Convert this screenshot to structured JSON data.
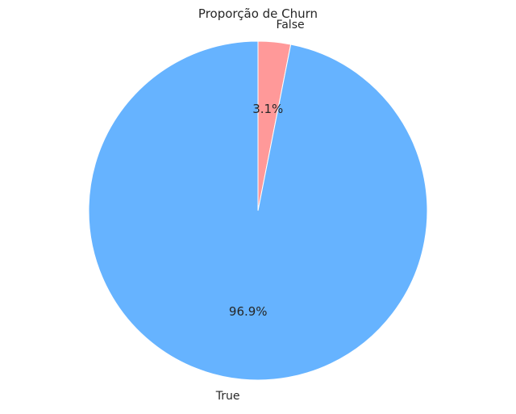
{
  "chart_data": {
    "type": "pie",
    "title": "Proporção de Churn",
    "start_angle_deg": 90,
    "direction": "clockwise",
    "slices": [
      {
        "label": "False",
        "value": 3.1,
        "pct_label": "3.1%",
        "color": "#ff9999"
      },
      {
        "label": "True",
        "value": 96.9,
        "pct_label": "96.9%",
        "color": "#66b3ff"
      }
    ]
  }
}
